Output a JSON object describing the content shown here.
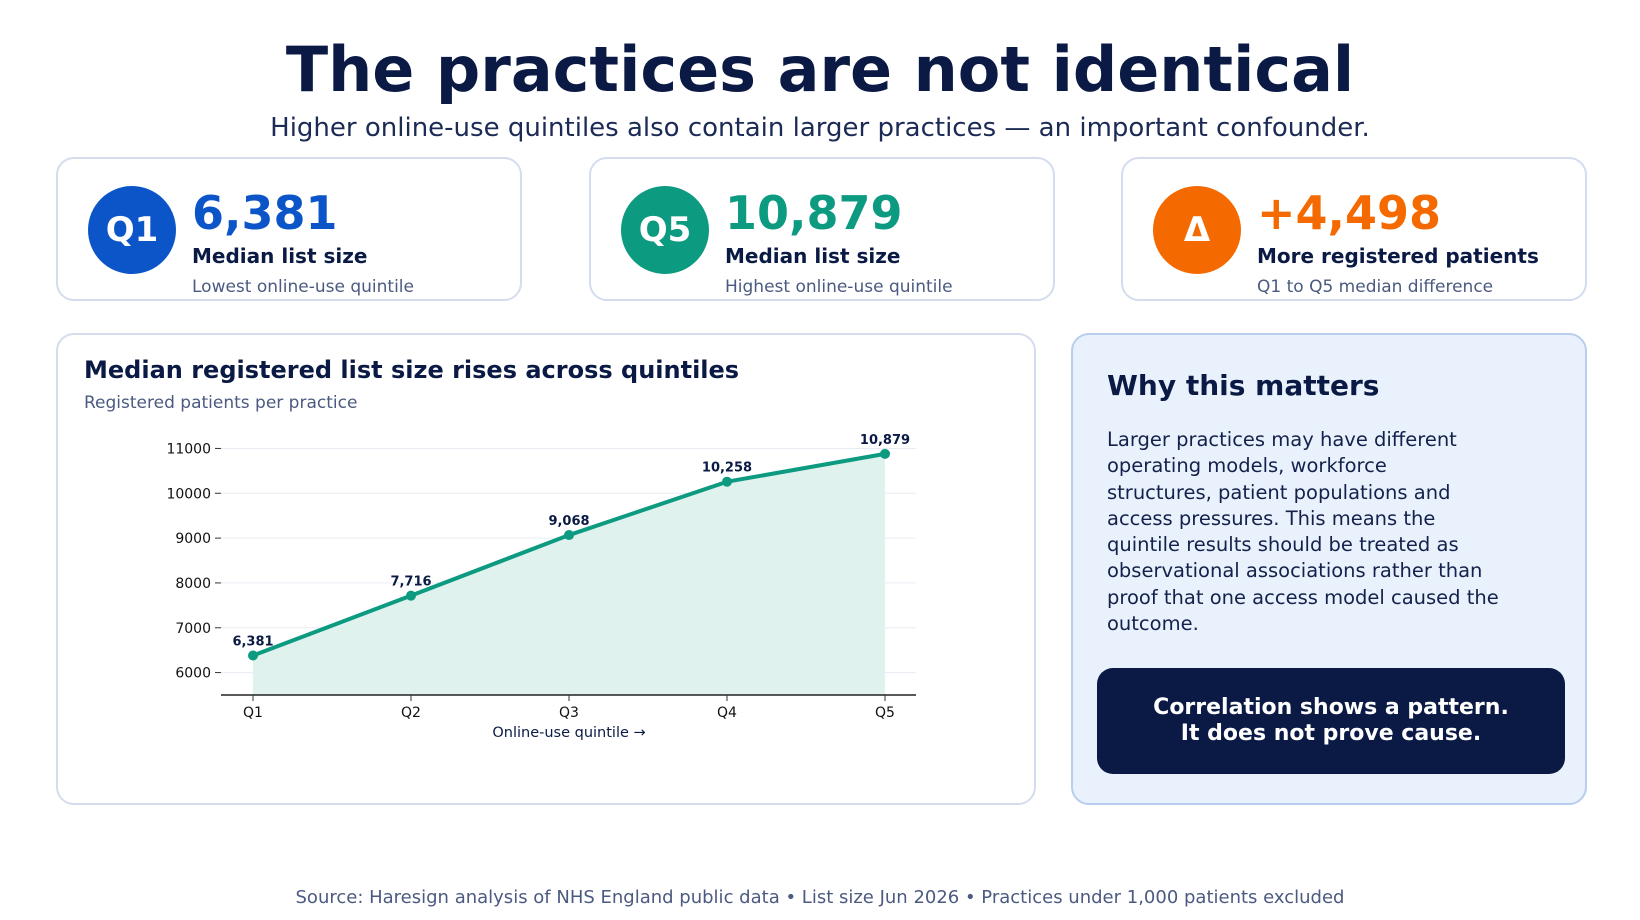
{
  "title": "The practices are not identical",
  "subtitle": "Higher online-use quintiles also contain larger practices — an important confounder.",
  "kpis": [
    {
      "badge": "Q1",
      "value": "6,381",
      "label": "Median list size",
      "sub": "Lowest online-use quintile",
      "color": "#0b55c8"
    },
    {
      "badge": "Q5",
      "value": "10,879",
      "label": "Median list size",
      "sub": "Highest online-use quintile",
      "color": "#0c9a80"
    },
    {
      "badge": "Δ",
      "value": "+4,498",
      "label": "More registered patients",
      "sub": "Q1 to Q5 median difference",
      "color": "#f46a00"
    }
  ],
  "chart_data": {
    "type": "line",
    "title": "Median registered list size rises across quintiles",
    "subtitle": "Registered patients per practice",
    "categories": [
      "Q1",
      "Q2",
      "Q3",
      "Q4",
      "Q5"
    ],
    "values": [
      6381,
      7716,
      9068,
      10258,
      10879
    ],
    "data_labels": [
      "6,381",
      "7,716",
      "9,068",
      "10,258",
      "10,879"
    ],
    "xlabel": "Online-use quintile →",
    "ylabel": "",
    "yticks": [
      6000,
      7000,
      8000,
      9000,
      10000,
      11000
    ],
    "ylim": [
      5500,
      11300
    ],
    "grid": true,
    "area_fill": true,
    "line_color": "#0c9a80",
    "fill_color": "#dff2ee"
  },
  "why": {
    "title": "Why this matters",
    "lines": [
      "Larger practices may have different",
      "operating models, workforce",
      "structures, patient populations and",
      "access pressures. This means the",
      "quintile results should be treated as",
      "observational associations rather than",
      "proof that one access model caused the",
      "outcome."
    ],
    "callout_line1": "Correlation shows a pattern.",
    "callout_line2": "It does not prove cause."
  },
  "source": "Source: Haresign analysis of NHS England public data • List size Jun 2026 • Practices under 1,000 patients excluded"
}
